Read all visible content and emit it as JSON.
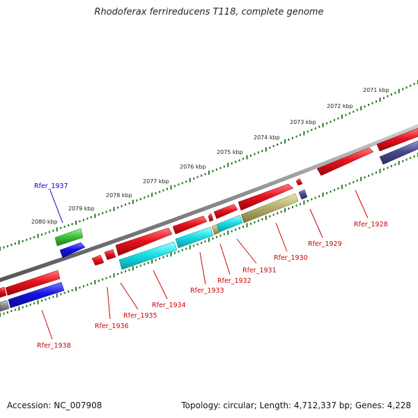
{
  "title": "Rhodoferax ferrireducens T118, complete genome",
  "footer": {
    "accession": "Accession: NC_007908",
    "summary": "Topology: circular; Length: 4,712,337 bp; Genes: 4,228"
  },
  "colors": {
    "background": "#ffffff",
    "backbone": "#888888",
    "tick": "#1f7a1f",
    "gene_red": "#e8141f",
    "gene_cyan": "#19e0e8",
    "gene_olive": "#b8b070",
    "gene_green": "#3ec43a",
    "gene_blue": "#1414e6",
    "gene_slate": "#4a4a90",
    "label_red": "#cc0000",
    "label_blue": "#0000cc"
  },
  "scale_labels": [
    {
      "text": "2071 kbp",
      "kbp": 2071
    },
    {
      "text": "2072 kbp",
      "kbp": 2072
    },
    {
      "text": "2073 kbp",
      "kbp": 2073
    },
    {
      "text": "2074 kbp",
      "kbp": 2074
    },
    {
      "text": "2075 kbp",
      "kbp": 2075
    },
    {
      "text": "2076 kbp",
      "kbp": 2076
    },
    {
      "text": "2077 kbp",
      "kbp": 2077
    },
    {
      "text": "2078 kbp",
      "kbp": 2078
    },
    {
      "text": "2079 kbp",
      "kbp": 2079
    },
    {
      "text": "2080 kbp",
      "kbp": 2080
    }
  ],
  "gene_labels": [
    {
      "text": "Rfer_1928",
      "color": "#cc0000"
    },
    {
      "text": "Rfer_1929",
      "color": "#cc0000"
    },
    {
      "text": "Rfer_1930",
      "color": "#cc0000"
    },
    {
      "text": "Rfer_1931",
      "color": "#cc0000"
    },
    {
      "text": "Rfer_1932",
      "color": "#cc0000"
    },
    {
      "text": "Rfer_1933",
      "color": "#cc0000"
    },
    {
      "text": "Rfer_1934",
      "color": "#cc0000"
    },
    {
      "text": "Rfer_1935",
      "color": "#cc0000"
    },
    {
      "text": "Rfer_1936",
      "color": "#cc0000"
    },
    {
      "text": "Rfer_1937",
      "color": "#0000cc"
    },
    {
      "text": "Rfer_1938",
      "color": "#cc0000"
    }
  ]
}
